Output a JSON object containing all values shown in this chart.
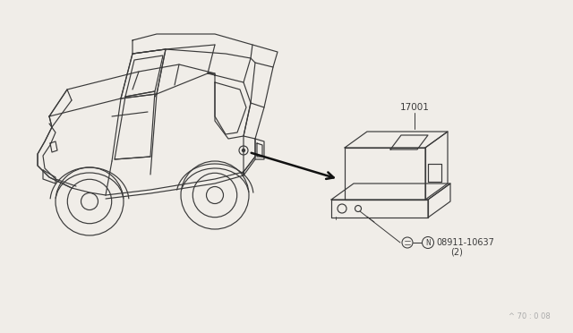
{
  "bg_color": "#f0ede8",
  "line_color": "#3a3a3a",
  "label_17001": "17001",
  "label_bolt": "08911-10637",
  "label_bolt2": "(2)",
  "label_N": "N",
  "watermark": "^ 70 : 0 08",
  "car_color": "#3a3a3a",
  "car_lw": 0.85,
  "fig_w": 6.4,
  "fig_h": 3.72,
  "dpi": 100
}
